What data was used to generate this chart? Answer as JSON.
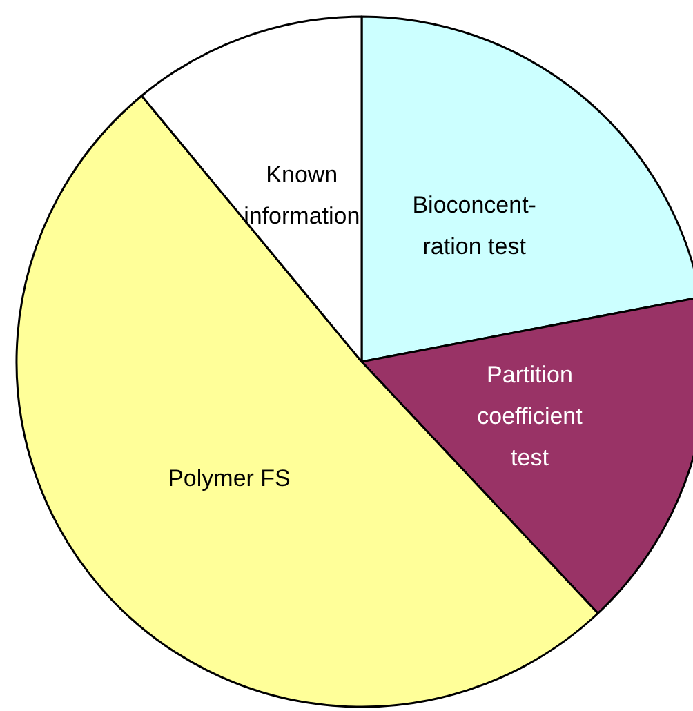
{
  "chart_data": {
    "type": "pie",
    "categories": [
      "Bioconcent-\nration test",
      "Partition\ncoefficient\ntest",
      "Polymer FS",
      "Known\ninformation"
    ],
    "values": [
      22,
      16,
      51,
      11
    ],
    "colors": [
      "#ccffff",
      "#993366",
      "#ffff99",
      "#ffffff"
    ]
  }
}
